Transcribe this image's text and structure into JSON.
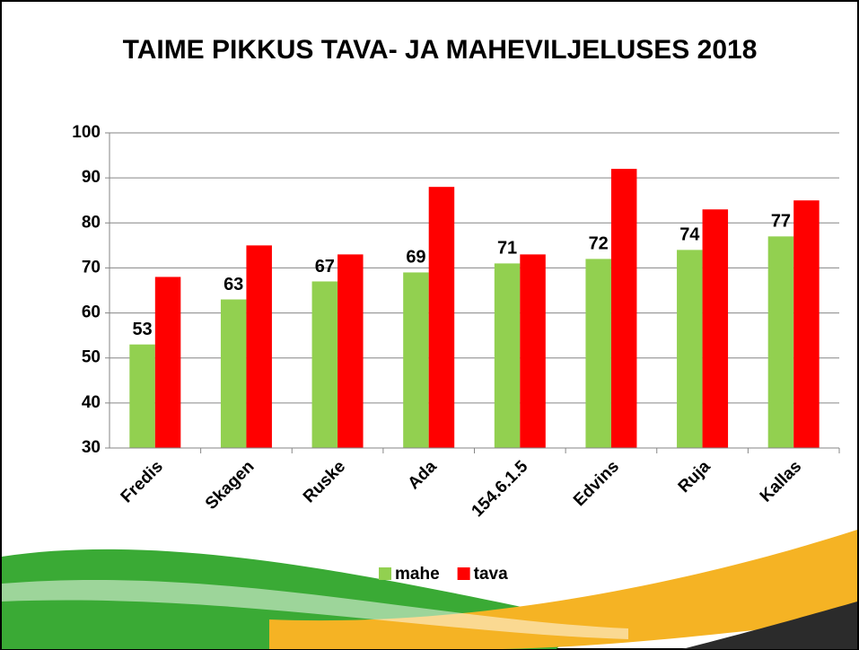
{
  "chart_data": {
    "type": "bar",
    "title": "TAIME PIKKUS TAVA- JA MAHEVILJELUSES 2018",
    "categories": [
      "Fredis",
      "Skagen",
      "Ruske",
      "Ada",
      "154.6.1.5",
      "Edvins",
      "Ruja",
      "Kallas"
    ],
    "series": [
      {
        "name": "mahe",
        "color": "#92d050",
        "values": [
          53,
          63,
          67,
          69,
          71,
          72,
          74,
          77
        ],
        "data_labels": true
      },
      {
        "name": "tava",
        "color": "#ff0000",
        "values": [
          68,
          75,
          73,
          88,
          73,
          92,
          83,
          85
        ],
        "data_labels": false
      }
    ],
    "ylim": [
      30,
      100
    ],
    "yticks": [
      30,
      40,
      50,
      60,
      70,
      80,
      90,
      100
    ],
    "grid": true,
    "legend": "bottom"
  }
}
